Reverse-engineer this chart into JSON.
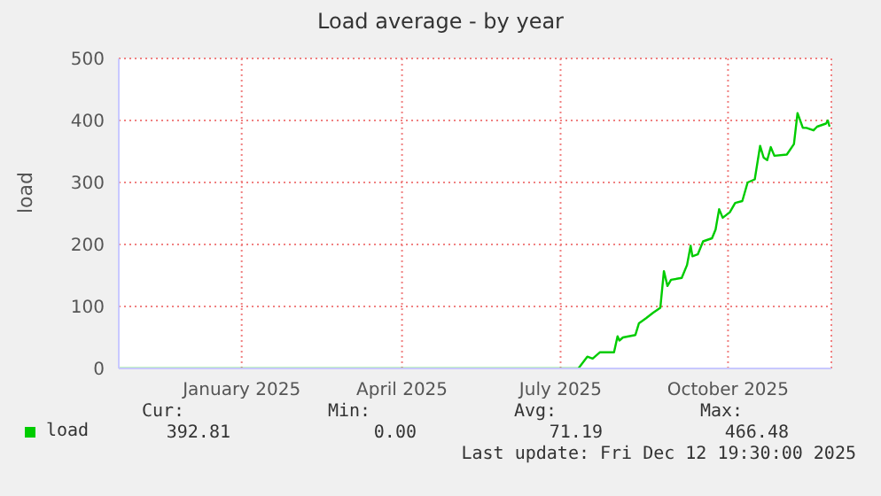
{
  "chart_data": {
    "type": "line",
    "title": "Load average - by year",
    "ylabel": "load",
    "x": [
      "2024-11-07",
      "2025-07-23",
      "2025-07-28",
      "2025-07-31",
      "2025-08-04",
      "2025-08-12",
      "2025-08-14",
      "2025-08-15",
      "2025-08-17",
      "2025-08-24",
      "2025-08-26",
      "2025-08-30",
      "2025-09-03",
      "2025-09-07",
      "2025-09-09",
      "2025-09-11",
      "2025-09-13",
      "2025-09-19",
      "2025-09-22",
      "2025-09-24",
      "2025-09-25",
      "2025-09-28",
      "2025-10-01",
      "2025-10-06",
      "2025-10-08",
      "2025-10-10",
      "2025-10-12",
      "2025-10-16",
      "2025-10-19",
      "2025-10-23",
      "2025-10-26",
      "2025-10-30",
      "2025-11-02",
      "2025-11-04",
      "2025-11-06",
      "2025-11-08",
      "2025-11-10",
      "2025-11-17",
      "2025-11-21",
      "2025-11-23",
      "2025-11-26",
      "2025-11-28",
      "2025-12-02",
      "2025-12-04",
      "2025-12-09",
      "2025-12-10",
      "2025-12-11"
    ],
    "series": [
      {
        "name": "load",
        "color": "#00cc00",
        "values": [
          0,
          0,
          19,
          16,
          26,
          26,
          52,
          45,
          50,
          54,
          73,
          81,
          90,
          98,
          157,
          133,
          143,
          146,
          167,
          198,
          181,
          184,
          205,
          210,
          224,
          257,
          243,
          252,
          267,
          270,
          300,
          305,
          359,
          340,
          336,
          357,
          343,
          345,
          362,
          412,
          388,
          388,
          384,
          390,
          395,
          400,
          390
        ]
      }
    ],
    "xlim": [
      "2024-11-07",
      "2025-12-12"
    ],
    "xticks": [
      {
        "value": "2025-01-15",
        "label": "January 2025"
      },
      {
        "value": "2025-04-15",
        "label": "April 2025"
      },
      {
        "value": "2025-07-13",
        "label": "July 2025"
      },
      {
        "value": "2025-10-15",
        "label": "October 2025"
      }
    ],
    "ylim": [
      0,
      500
    ],
    "yticks": [
      0,
      100,
      200,
      300,
      400,
      500
    ],
    "grid": true,
    "legend": "bottom",
    "marker": "none",
    "annotations": [
      "Cur:",
      "392.81",
      "Min:",
      "0.00",
      "Avg:",
      "71.19",
      "Max:",
      "466.48",
      "Last update: Fri Dec 12 19:30:00 2025"
    ]
  }
}
